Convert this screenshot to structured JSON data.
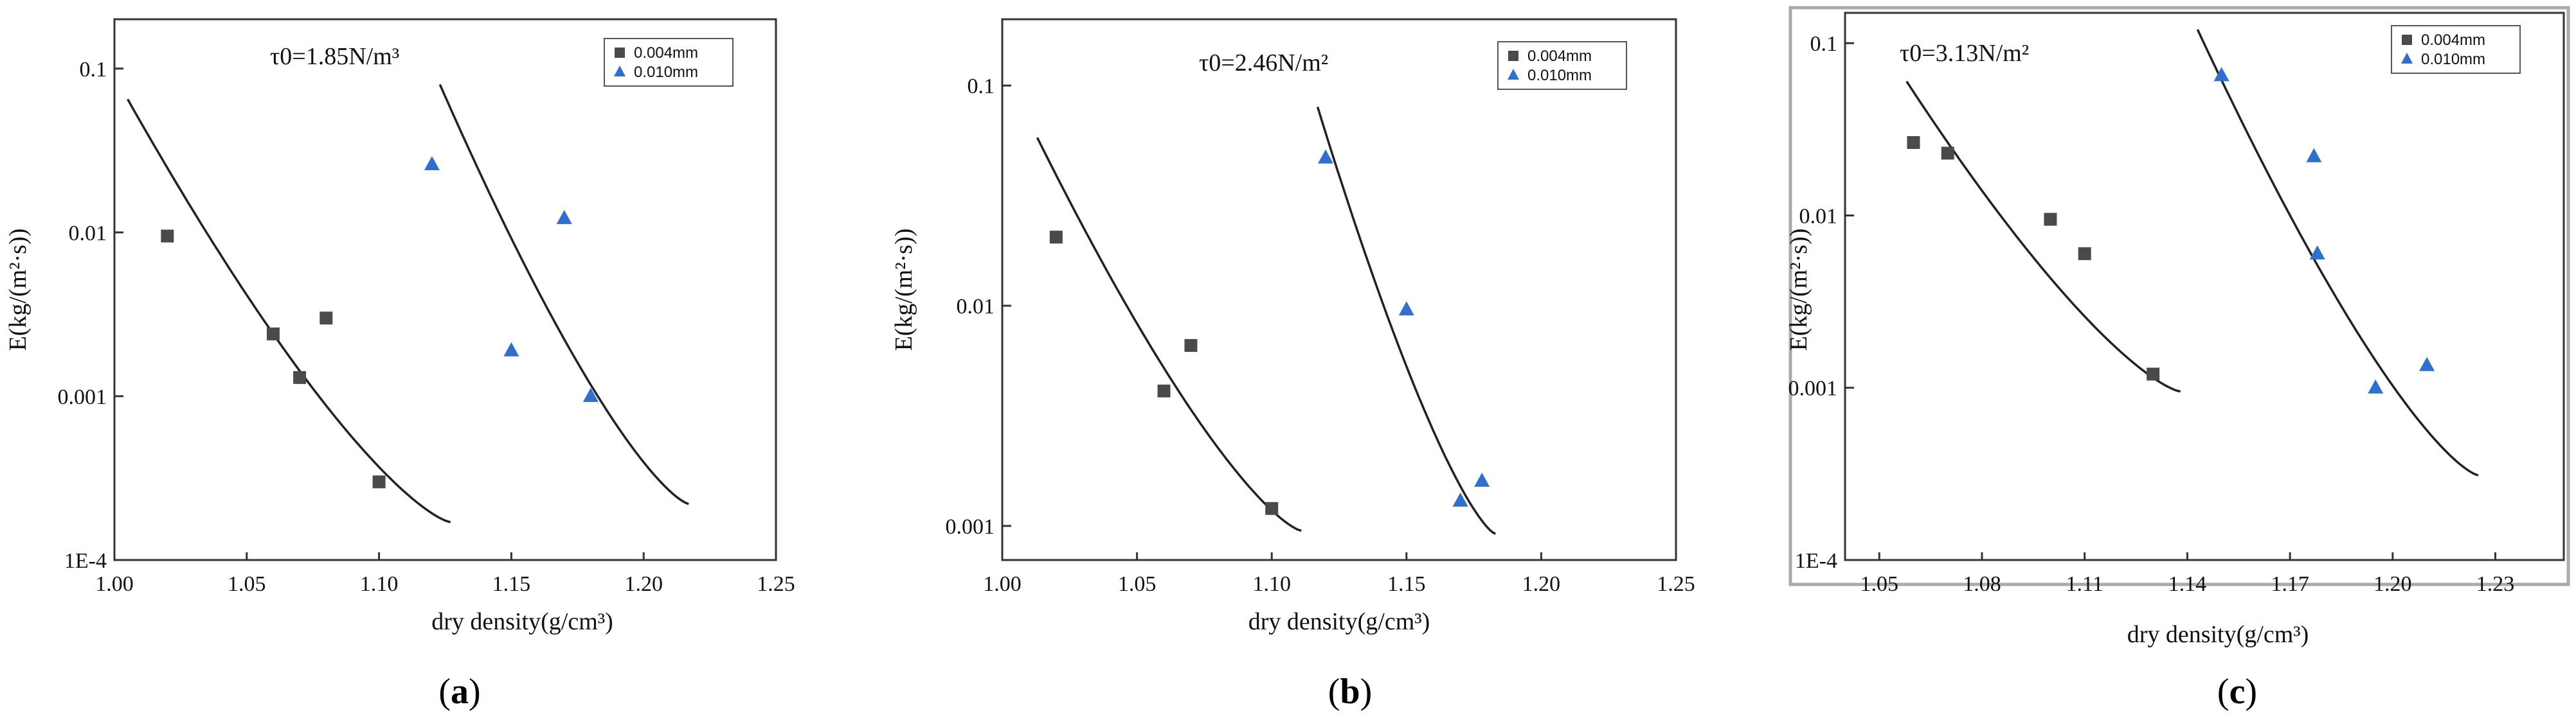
{
  "colors": {
    "series1": "#4a4a4a",
    "series2": "#2f6fd0"
  },
  "chart_data": [
    {
      "type": "scatter",
      "panel": "a",
      "annotation": "τ0=1.85N/m³",
      "xlabel": "dry density(g/cm³)",
      "ylabel": "E(kg/(m²·s))",
      "xlim": [
        1.0,
        1.25
      ],
      "ylim": [
        0.0001,
        0.2
      ],
      "yscale": "log",
      "xticks": [
        "1.00",
        "1.05",
        "1.10",
        "1.15",
        "1.20",
        "1.25"
      ],
      "xtick_values": [
        1.0,
        1.05,
        1.1,
        1.15,
        1.2,
        1.25
      ],
      "yticks": [
        "1E-4",
        "0.001",
        "0.01",
        "0.1"
      ],
      "ytick_values": [
        0.0001,
        0.001,
        0.01,
        0.1
      ],
      "legend": {
        "placement": "top-right",
        "entries": [
          "0.004mm",
          "0.010mm"
        ]
      },
      "series": [
        {
          "name": "0.004mm",
          "marker": "square",
          "x": [
            1.02,
            1.06,
            1.07,
            1.08,
            1.1
          ],
          "y": [
            0.0095,
            0.0024,
            0.0013,
            0.003,
            0.0003
          ],
          "fit": {
            "x": [
              1.005,
              1.127
            ],
            "a": 2.0,
            "b": -18.1
          }
        },
        {
          "name": "0.010mm",
          "marker": "triangle",
          "x": [
            1.12,
            1.15,
            1.17,
            1.18
          ],
          "y": [
            0.026,
            0.0019,
            0.0122,
            0.001
          ],
          "fit": {
            "x": [
              1.123,
              1.217
            ],
            "a": 11.8,
            "b": -26.4
          }
        }
      ],
      "caption": "(a)",
      "caption_letter": "a"
    },
    {
      "type": "scatter",
      "panel": "b",
      "annotation": "τ0=2.46N/m²",
      "xlabel": "dry density(g/cm³)",
      "ylabel": "E(kg/(m²·s))",
      "xlim": [
        1.0,
        1.25
      ],
      "ylim": [
        0.0007,
        0.2
      ],
      "yscale": "log",
      "xticks": [
        "1.00",
        "1.05",
        "1.10",
        "1.15",
        "1.20",
        "1.25"
      ],
      "xtick_values": [
        1.0,
        1.05,
        1.1,
        1.15,
        1.2,
        1.25
      ],
      "yticks": [
        "0.001",
        "0.01",
        "0.1"
      ],
      "ytick_values": [
        0.001,
        0.01,
        0.1
      ],
      "legend": {
        "placement": "top-right",
        "entries": [
          "0.004mm",
          "0.010mm"
        ]
      },
      "series": [
        {
          "name": "0.004mm",
          "marker": "square",
          "x": [
            1.02,
            1.06,
            1.07,
            1.1
          ],
          "y": [
            0.0205,
            0.0041,
            0.0066,
            0.0012
          ],
          "fit": {
            "x": [
              1.013,
              1.111
            ],
            "a": 1.68,
            "b": -17.2
          }
        },
        {
          "name": "0.010mm",
          "marker": "triangle",
          "x": [
            1.12,
            1.15,
            1.17,
            1.178
          ],
          "y": [
            0.047,
            0.0096,
            0.0013,
            0.0016
          ],
          "fit": {
            "x": [
              1.117,
              1.183
            ],
            "a": 1.19,
            "b": -31.0
          }
        }
      ],
      "caption": "(b)",
      "caption_letter": "b"
    },
    {
      "type": "scatter",
      "panel": "c",
      "annotation": "τ0=3.13N/m²",
      "xlabel": "dry density(g/cm³)",
      "ylabel": "E(kg/(m²·s))",
      "xlim": [
        1.04,
        1.25
      ],
      "ylim": [
        0.0001,
        0.15
      ],
      "yscale": "log",
      "xticks": [
        "1.05",
        "1.08",
        "1.11",
        "1.14",
        "1.17",
        "1.20",
        "1.23"
      ],
      "xtick_values": [
        1.05,
        1.08,
        1.11,
        1.14,
        1.17,
        1.2,
        1.23
      ],
      "yticks": [
        "1E-4",
        "0.001",
        "0.01",
        "0.1"
      ],
      "ytick_values": [
        0.0001,
        0.001,
        0.01,
        0.1
      ],
      "legend": {
        "placement": "top-right",
        "entries": [
          "0.004mm",
          "0.010mm"
        ]
      },
      "series": [
        {
          "name": "0.004mm",
          "marker": "square",
          "x": [
            1.06,
            1.07,
            1.1,
            1.11,
            1.13
          ],
          "y": [
            0.0265,
            0.023,
            0.0095,
            0.006,
            0.0012
          ],
          "fit": {
            "x": [
              1.058,
              1.138
            ],
            "a": 0.0607,
            "b": -17.6,
            "c": -0.0153
          }
        },
        {
          "name": "0.010mm",
          "marker": "triangle",
          "x": [
            1.15,
            1.177,
            1.178,
            1.195,
            1.21
          ],
          "y": [
            0.065,
            0.022,
            0.006,
            0.001,
            0.00135
          ],
          "fit": {
            "x": [
              1.143,
              1.225
            ],
            "a": 0.125,
            "b": -34.6,
            "c": -0.1413
          }
        }
      ],
      "caption": "(c)",
      "caption_letter": "c"
    }
  ]
}
